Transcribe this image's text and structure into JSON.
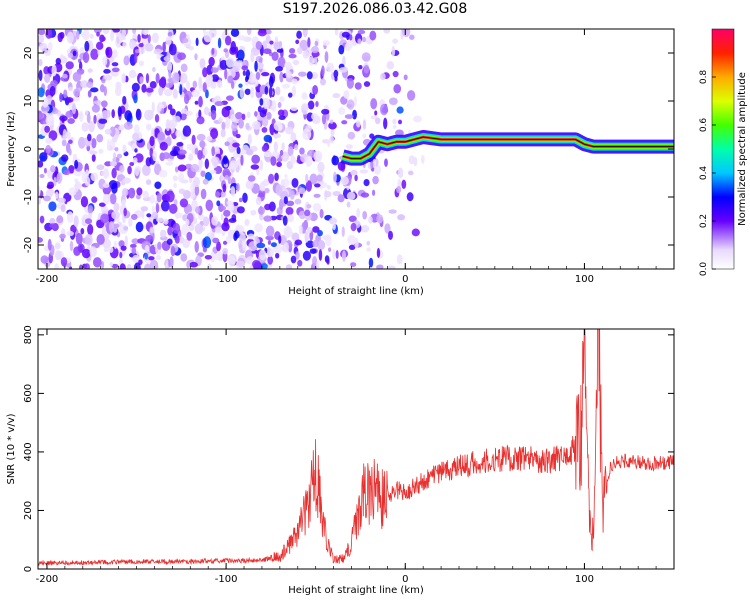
{
  "title": "S197.2026.086.03.42.G08",
  "chart_data": [
    {
      "type": "heatmap",
      "title": "S197.2026.086.03.42.G08",
      "xlabel": "Height of straight line (km)",
      "ylabel": "Frequency (Hz)",
      "xlim": [
        -205,
        150
      ],
      "ylim": [
        -25,
        25
      ],
      "xticks": [
        "-200",
        "-100",
        "0",
        "100"
      ],
      "yticks": [
        "-20",
        "-10",
        "0",
        "10",
        "20"
      ],
      "colorbar": {
        "label": "Normalized spectral amplitude",
        "range": [
          0,
          1
        ],
        "ticks": [
          "0.0",
          "0.2",
          "0.4",
          "0.6",
          "0.8"
        ]
      },
      "description_series": {
        "noise_region_km": [
          -205,
          -25
        ],
        "dominant_frequency_trace": {
          "x": [
            -35,
            -30,
            -25,
            -20,
            -15,
            -10,
            -5,
            0,
            5,
            10,
            20,
            40,
            60,
            80,
            95,
            100,
            105,
            110,
            130,
            150
          ],
          "y": [
            -1.5,
            -2,
            -2,
            -1,
            1.5,
            1,
            1.5,
            1.5,
            2,
            2.5,
            2,
            2,
            2,
            2,
            2,
            1,
            0.5,
            0.5,
            0.5,
            0.5
          ]
        }
      }
    },
    {
      "type": "line",
      "title": "",
      "xlabel": "Height of straight line (km)",
      "ylabel": "SNR (10 * v/v)",
      "xlim": [
        -205,
        150
      ],
      "ylim": [
        0,
        820
      ],
      "xticks": [
        "-200",
        "-100",
        "0",
        "100"
      ],
      "yticks": [
        "0",
        "200",
        "400",
        "600",
        "800"
      ],
      "series": [
        {
          "name": "SNR",
          "color": "#e8302f",
          "x": [
            -205,
            -180,
            -150,
            -120,
            -100,
            -80,
            -70,
            -65,
            -60,
            -55,
            -52,
            -50,
            -47,
            -45,
            -42,
            -40,
            -35,
            -30,
            -27,
            -25,
            -22,
            -20,
            -18,
            -15,
            -10,
            -5,
            0,
            10,
            20,
            30,
            40,
            50,
            60,
            70,
            80,
            90,
            95,
            98,
            100,
            102,
            104,
            106,
            108,
            110,
            115,
            120,
            130,
            140,
            150
          ],
          "values": [
            20,
            22,
            25,
            26,
            28,
            30,
            45,
            80,
            130,
            200,
            300,
            330,
            220,
            130,
            60,
            30,
            35,
            90,
            170,
            240,
            310,
            260,
            290,
            250,
            240,
            270,
            260,
            300,
            330,
            350,
            365,
            375,
            380,
            375,
            370,
            385,
            420,
            500,
            620,
            300,
            70,
            250,
            820,
            200,
            360,
            370,
            365,
            360,
            365
          ]
        }
      ]
    }
  ]
}
